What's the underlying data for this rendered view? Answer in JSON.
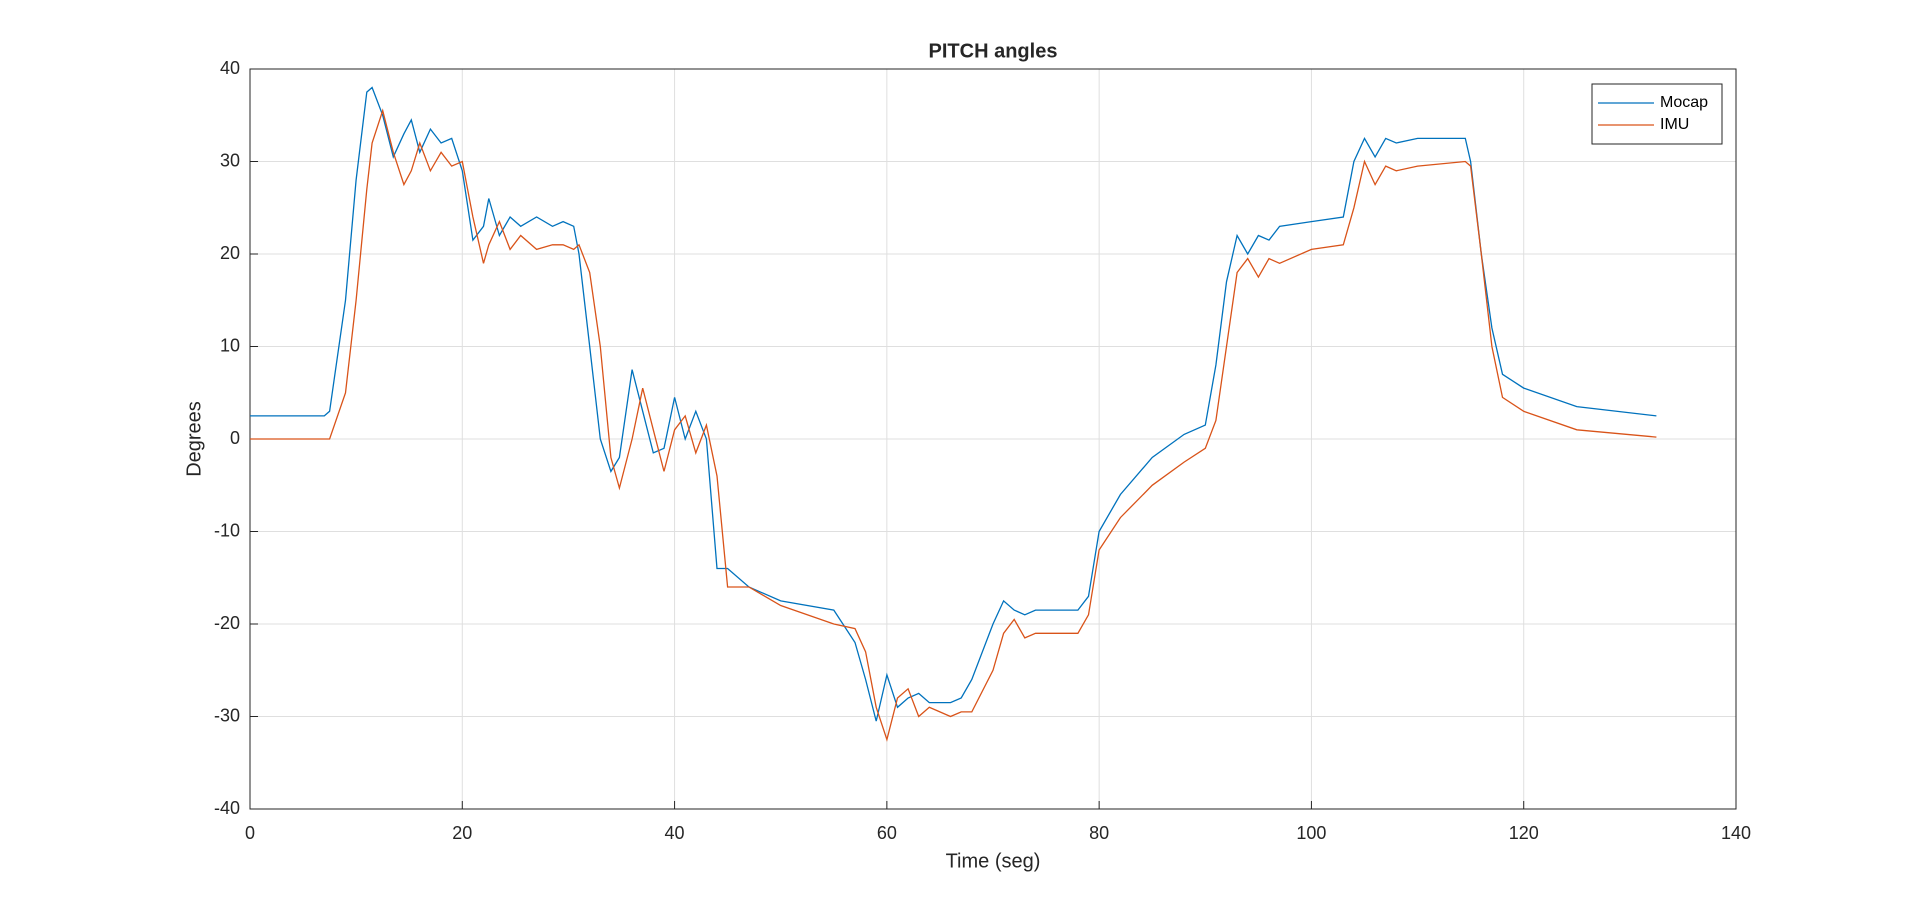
{
  "chart_data": {
    "type": "line",
    "title": "PITCH angles",
    "x_label": "Time (seg)",
    "y_label": "Degrees",
    "xlim": [
      0,
      140
    ],
    "ylim": [
      -40,
      40
    ],
    "xticks": [
      0,
      20,
      40,
      60,
      80,
      100,
      120,
      140
    ],
    "yticks": [
      -40,
      -30,
      -20,
      -10,
      0,
      10,
      20,
      30,
      40
    ],
    "grid": true,
    "legend": "northeast",
    "x": [
      0,
      7,
      7.5,
      9,
      10,
      11,
      11.5,
      12.5,
      13.5,
      14.5,
      15.2,
      16,
      17,
      18,
      19,
      20,
      21,
      22,
      22.5,
      23.5,
      24.5,
      25.5,
      27,
      28.5,
      29.5,
      30.5,
      31,
      32,
      33,
      34,
      34.8,
      36,
      37,
      38,
      39,
      40,
      41,
      42,
      43,
      44,
      45,
      47,
      50,
      55,
      57,
      58,
      59,
      60,
      61,
      62,
      63,
      64,
      65,
      66,
      67,
      68,
      70,
      71,
      72,
      73,
      74,
      78,
      79,
      80,
      82,
      85,
      88,
      90,
      91,
      92,
      93,
      94,
      95,
      96,
      97,
      100,
      103,
      104,
      105,
      106,
      107,
      108,
      110,
      114.5,
      115,
      116,
      117,
      118,
      120,
      125,
      132.5
    ],
    "series": [
      {
        "name": "Mocap",
        "color": "#0072bd",
        "values": [
          2.5,
          2.5,
          3,
          15,
          28,
          37.5,
          38,
          35,
          30.5,
          33,
          34.5,
          31,
          33.5,
          32,
          32.5,
          29,
          21.5,
          23,
          26,
          22,
          24,
          23,
          24,
          23,
          23.5,
          23,
          20,
          10,
          0,
          -3.5,
          -2,
          7.5,
          3,
          -1.5,
          -1,
          4.5,
          0,
          3,
          0,
          -14,
          -14,
          -16,
          -17.5,
          -18.5,
          -22,
          -26,
          -30.5,
          -25.5,
          -29,
          -28,
          -27.5,
          -28.5,
          -28.5,
          -28.5,
          -28,
          -26,
          -20,
          -17.5,
          -18.5,
          -19,
          -18.5,
          -18.5,
          -17,
          -10,
          -6,
          -2,
          0.5,
          1.5,
          8,
          17,
          22,
          20,
          22,
          21.5,
          23,
          23.5,
          24,
          30,
          32.5,
          30.5,
          32.5,
          32,
          32.5,
          32.5,
          30,
          20,
          12,
          7,
          5.5,
          3.5,
          2.5
        ]
      },
      {
        "name": "IMU",
        "color": "#d95319",
        "values": [
          0,
          0,
          0,
          5,
          15,
          27,
          32,
          35.5,
          31,
          27.5,
          29,
          32,
          29,
          31,
          29.5,
          30,
          24,
          19,
          21,
          23.5,
          20.5,
          22,
          20.5,
          21,
          21,
          20.5,
          21,
          18,
          10,
          -2,
          -5.3,
          0,
          5.5,
          1,
          -3.5,
          1,
          2.5,
          -1.5,
          1.5,
          -4,
          -16,
          -16,
          -18,
          -20,
          -20.5,
          -23,
          -29,
          -32.5,
          -28,
          -27,
          -30,
          -29,
          -29.5,
          -30,
          -29.5,
          -29.5,
          -25,
          -21,
          -19.5,
          -21.5,
          -21,
          -21,
          -19,
          -12,
          -8.5,
          -5,
          -2.5,
          -1,
          2,
          10,
          18,
          19.5,
          17.5,
          19.5,
          19,
          20.5,
          21,
          25,
          30,
          27.5,
          29.5,
          29,
          29.5,
          30,
          29.5,
          20,
          10,
          4.5,
          3,
          1,
          0.2
        ]
      }
    ]
  }
}
